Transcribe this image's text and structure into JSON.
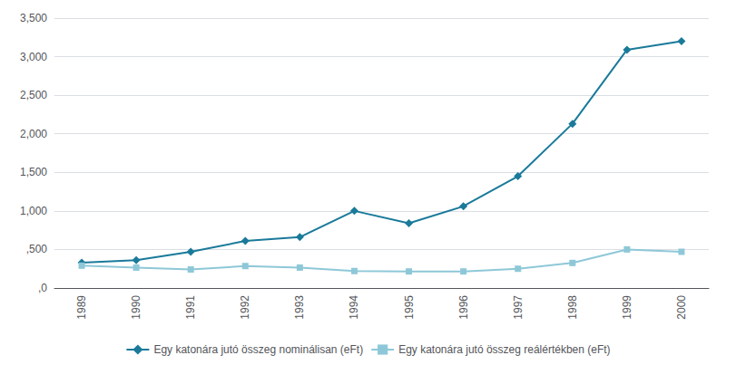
{
  "chart_data": {
    "type": "line",
    "categories": [
      "1989",
      "1990",
      "1991",
      "1992",
      "1993",
      "1994",
      "1995",
      "1996",
      "1997",
      "1998",
      "1999",
      "2000"
    ],
    "series": [
      {
        "name": "Egy katonára jutó összeg nominálisan (eFt)",
        "color": "#1a7a9a",
        "marker": "diamond",
        "values": [
          330,
          360,
          470,
          610,
          660,
          1000,
          840,
          1060,
          1450,
          2130,
          3090,
          3200
        ]
      },
      {
        "name": "Egy katonára jutó összeg reálértékben (eFt)",
        "color": "#8ec8d8",
        "marker": "square",
        "values": [
          290,
          265,
          240,
          285,
          265,
          220,
          215,
          215,
          250,
          325,
          500,
          470
        ]
      }
    ],
    "ylim": [
      0,
      3500
    ],
    "yticks": [
      {
        "value": 0,
        "label": ",0"
      },
      {
        "value": 500,
        "label": ",500"
      },
      {
        "value": 1000,
        "label": "1,000"
      },
      {
        "value": 1500,
        "label": "1,500"
      },
      {
        "value": 2000,
        "label": "2,000"
      },
      {
        "value": 2500,
        "label": "2,500"
      },
      {
        "value": 3000,
        "label": "3,000"
      },
      {
        "value": 3500,
        "label": "3,500"
      }
    ],
    "grid": true,
    "legend": "bottom"
  }
}
